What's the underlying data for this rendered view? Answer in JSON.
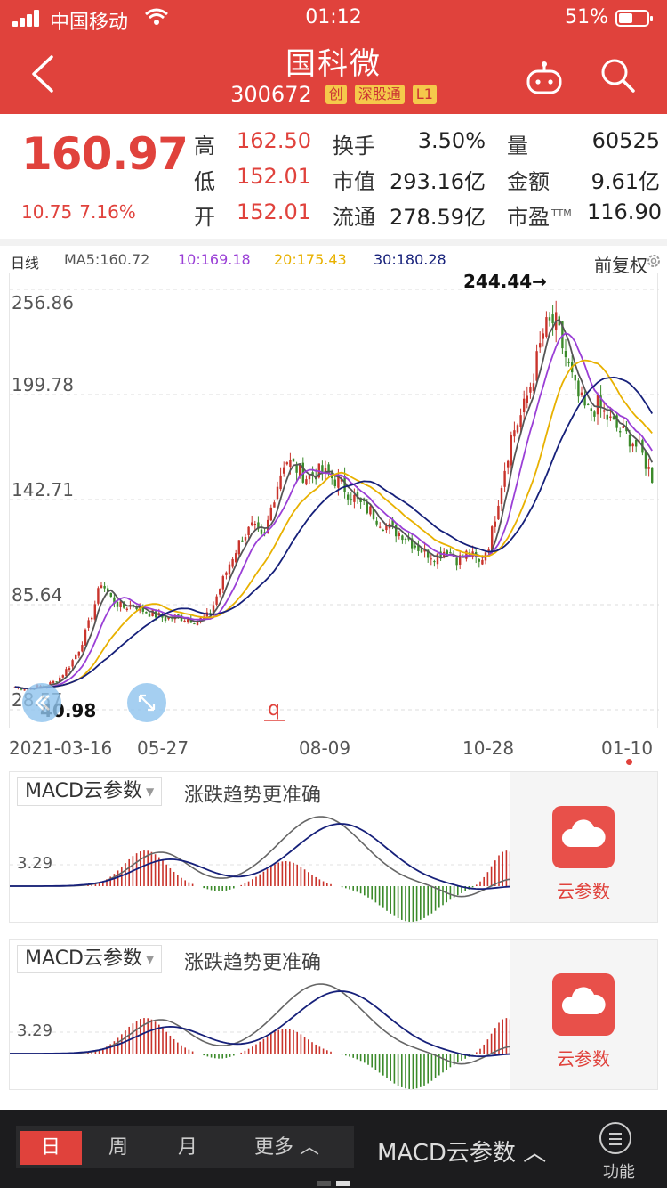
{
  "status_bar": {
    "carrier": "中国移动",
    "time": "01:12",
    "battery_text": "51%",
    "battery_level": 0.51
  },
  "header": {
    "stock_name": "国科微",
    "stock_code": "300672",
    "badges": [
      "创",
      "深股通",
      "L1"
    ],
    "background_color": "#e0423c"
  },
  "quote": {
    "price": "160.97",
    "change": "10.75",
    "change_pct": "7.16%",
    "fields": [
      {
        "label": "高",
        "value": "162.50",
        "color": "red"
      },
      {
        "label": "换手",
        "value": "3.50%",
        "color": "dark"
      },
      {
        "label": "量",
        "value": "60525",
        "color": "dark"
      },
      {
        "label": "低",
        "value": "152.01",
        "color": "red"
      },
      {
        "label": "市值",
        "value": "293.16亿",
        "color": "dark"
      },
      {
        "label": "金额",
        "value": "9.61亿",
        "color": "dark"
      },
      {
        "label": "开",
        "value": "152.01",
        "color": "red"
      },
      {
        "label": "流通",
        "value": "278.59亿",
        "color": "dark"
      },
      {
        "label": "市盈",
        "value": "116.90",
        "color": "dark",
        "superscript": "TTM"
      }
    ]
  },
  "chart_header": {
    "period_label": "日线",
    "ma5": "MA5:160.72",
    "ma10": "10:169.18",
    "ma20": "20:175.43",
    "ma30": "30:180.28",
    "adjust": "前复权",
    "colors": {
      "ma5": "#555555",
      "ma10": "#9a3fd6",
      "ma20": "#e8b100",
      "ma30": "#16207a",
      "up": "#c9342c",
      "down": "#3b8a2a"
    }
  },
  "chart_data": {
    "type": "candlestick",
    "y_ticks": [
      "256.86",
      "199.78",
      "142.71",
      "85.64",
      "28.57"
    ],
    "ylim": [
      28.57,
      256.86
    ],
    "x_ticks": [
      "2021-03-16",
      "05-27",
      "08-09",
      "10-28",
      "01-10"
    ],
    "annotations": {
      "high": "244.44→",
      "low": "40.98"
    },
    "price_path": [
      41,
      40,
      41,
      42,
      45,
      52,
      62,
      78,
      98,
      88,
      84,
      86,
      82,
      80,
      78,
      79,
      78,
      77,
      80,
      95,
      110,
      122,
      128,
      120,
      145,
      165,
      160,
      155,
      158,
      156,
      152,
      146,
      140,
      136,
      130,
      126,
      124,
      118,
      114,
      112,
      116,
      110,
      114,
      108,
      120,
      150,
      178,
      190,
      210,
      235,
      240,
      220,
      200,
      190,
      194,
      186,
      180,
      176,
      168,
      155
    ]
  },
  "macd_panels": [
    {
      "title": "MACD云参数",
      "tip": "涨跌趋势更准确",
      "axis_value": "3.29",
      "cloud_label": "云参数"
    },
    {
      "title": "MACD云参数",
      "tip": "涨跌趋势更准确",
      "axis_value": "3.29",
      "cloud_label": "云参数"
    }
  ],
  "bottom_bar": {
    "tabs": [
      "日",
      "周",
      "月",
      "更多"
    ],
    "active_tab": "日",
    "indicator": "MACD云参数",
    "func_label": "功能"
  }
}
